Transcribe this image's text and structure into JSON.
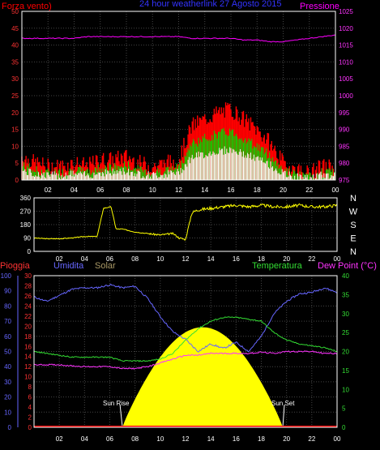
{
  "top_title": "24 hour weatherlink  27 Agosto 2015",
  "charts": {
    "wind": {
      "left_label": "Forza vento)",
      "right_label": "Pressione",
      "left_ticks": [
        "50",
        "45",
        "40",
        "35",
        "30",
        "25",
        "20",
        "15",
        "10",
        "5",
        "0"
      ],
      "right_ticks": [
        "1025",
        "1020",
        "1015",
        "1010",
        "1005",
        "1000",
        "995",
        "990",
        "985",
        "980",
        "975"
      ],
      "x_ticks": [
        "02",
        "04",
        "06",
        "08",
        "10",
        "12",
        "14",
        "16",
        "18",
        "20",
        "22",
        "00"
      ]
    },
    "direction": {
      "left_ticks": [
        "360",
        "270",
        "180",
        "90",
        "0"
      ],
      "right_ticks": [
        "N",
        "W",
        "S",
        "E",
        "N"
      ],
      "x_ticks": [
        "02",
        "04",
        "06",
        "08",
        "10",
        "12",
        "14",
        "16",
        "18",
        "20",
        "22",
        "00"
      ]
    },
    "bottom": {
      "label_rain": "Pioggia",
      "label_humidity": "Umidita",
      "label_solar": "Solar",
      "label_temp": "Temperatura",
      "label_dew": "Dew Point (°C)",
      "humidity_ticks": [
        "100",
        "90",
        "80",
        "70",
        "60",
        "50",
        "40",
        "30",
        "20",
        "10",
        "0"
      ],
      "rain_ticks": [
        "30",
        "28",
        "26",
        "24",
        "22",
        "20",
        "18",
        "16",
        "14",
        "12",
        "10",
        "8",
        "6",
        "4",
        "2",
        "0"
      ],
      "temp_ticks": [
        "40",
        "35",
        "30",
        "25",
        "20",
        "15",
        "10",
        "5",
        "0"
      ],
      "x_ticks": [
        "02",
        "04",
        "06",
        "08",
        "10",
        "12",
        "14",
        "16",
        "18",
        "20",
        "22",
        "00"
      ],
      "sun_rise": "Sun Rise",
      "sun_set": "Sun Set"
    }
  },
  "colors": {
    "wind_red": "#ff0000",
    "wind_green": "#00dd00",
    "wind_white": "#ffffff",
    "pressure": "#ff00ff",
    "direction": "#ffff00",
    "humidity": "#6666ff",
    "temperature": "#33dd33",
    "dew": "#ff33ff",
    "solar": "#ffff00",
    "rain": "#ff0000"
  },
  "chart_data": [
    {
      "type": "line",
      "title": "24 hour weatherlink  27 Agosto 2015",
      "x_hours": [
        0,
        1,
        2,
        3,
        4,
        5,
        6,
        7,
        8,
        9,
        10,
        11,
        12,
        13,
        14,
        15,
        16,
        17,
        18,
        19,
        20,
        21,
        22,
        23,
        24
      ],
      "series": [
        {
          "name": "Forza vento)",
          "axis": "left",
          "ylim": [
            0,
            50
          ],
          "values": [
            6,
            4,
            3,
            3,
            4,
            3,
            5,
            5,
            6,
            4,
            3,
            4,
            5,
            15,
            17,
            19,
            20,
            17,
            14,
            10,
            4,
            2,
            1,
            3,
            3
          ]
        },
        {
          "name": "Pressione",
          "axis": "right",
          "ylim": [
            975,
            1025
          ],
          "values": [
            1017,
            1017,
            1017,
            1017,
            1017,
            1017.5,
            1017.5,
            1017.5,
            1017.5,
            1017.5,
            1017.5,
            1017.5,
            1017.5,
            1017,
            1017,
            1017,
            1017,
            1016.5,
            1016.5,
            1016,
            1016,
            1016.5,
            1017,
            1017.5,
            1018
          ]
        }
      ]
    },
    {
      "type": "line",
      "x_hours": [
        0,
        1,
        2,
        3,
        4,
        5,
        5.5,
        6.1,
        6.5,
        7,
        8,
        9,
        10,
        11,
        11.5,
        12,
        12.5,
        13,
        14,
        15,
        16,
        17,
        18,
        19,
        20,
        21,
        22,
        23,
        24
      ],
      "series": [
        {
          "ylim": [
            0,
            360
          ],
          "values": [
            90,
            85,
            85,
            90,
            100,
            100,
            290,
            300,
            150,
            150,
            130,
            120,
            110,
            120,
            90,
            80,
            260,
            280,
            290,
            300,
            310,
            300,
            310,
            300,
            300,
            310,
            300,
            300,
            310
          ]
        }
      ]
    },
    {
      "type": "line",
      "x_hours": [
        0,
        1,
        2,
        3,
        4,
        5,
        6,
        7,
        8,
        9,
        10,
        11,
        12,
        13,
        14,
        15,
        16,
        17,
        18,
        19,
        20,
        21,
        22,
        23,
        24
      ],
      "series": [
        {
          "name": "Umidita",
          "axis": "left",
          "ylim": [
            0,
            100
          ],
          "values": [
            86,
            83,
            87,
            91,
            92,
            92,
            94,
            92,
            93,
            85,
            73,
            63,
            58,
            50,
            55,
            52,
            56,
            50,
            60,
            75,
            83,
            88,
            89,
            92,
            89
          ]
        },
        {
          "name": "Temperatura",
          "axis": "right",
          "ylim": [
            0,
            40
          ],
          "values": [
            20,
            19.5,
            19,
            18.5,
            18.5,
            18.5,
            18.5,
            17.5,
            17.5,
            17.5,
            18,
            19.5,
            23,
            26,
            28,
            29,
            29,
            28.5,
            28,
            25,
            23,
            22,
            21.5,
            21,
            20
          ]
        },
        {
          "name": "Dew Point (°C)",
          "axis": "right",
          "ylim": [
            0,
            40
          ],
          "values": [
            16.5,
            16.5,
            16.5,
            16.2,
            16,
            16,
            16,
            15.5,
            15.5,
            16,
            17,
            18,
            19,
            19,
            19.5,
            19.5,
            19.5,
            19.5,
            19.8,
            19.5,
            20,
            20,
            20,
            19.5,
            19.5
          ]
        },
        {
          "name": "Solar",
          "type": "area",
          "rise_hour": 7,
          "set_hour": 19.7,
          "peak_fraction": 0.66
        },
        {
          "name": "Pioggia",
          "axis": "left",
          "ylim": [
            0,
            30
          ],
          "values": [
            0,
            0
          ]
        }
      ]
    }
  ]
}
